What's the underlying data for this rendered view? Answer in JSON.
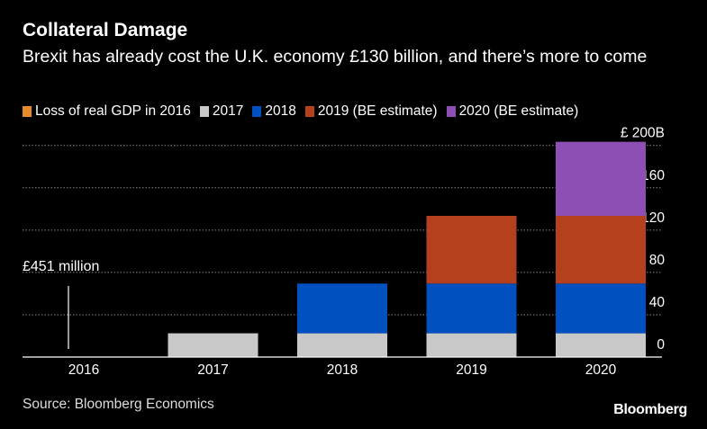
{
  "chart_data": {
    "type": "bar",
    "stacked": true,
    "title": "Collateral Damage",
    "subtitle": "Brexit has already cost the U.K. economy £130 billion, and there’s more to come",
    "categories": [
      "2016",
      "2017",
      "2018",
      "2019",
      "2020"
    ],
    "series": [
      {
        "name": "Loss of real GDP in 2016",
        "color": "#e8892c",
        "values": [
          0.451,
          0.451,
          0.451,
          0.451,
          0.451
        ]
      },
      {
        "name": "2017",
        "color": "#c8c8c8",
        "values": [
          0,
          22,
          22,
          22,
          22
        ]
      },
      {
        "name": "2018",
        "color": "#0050c0",
        "values": [
          0,
          0,
          47,
          47,
          47
        ]
      },
      {
        "name": "2019 (BE estimate)",
        "color": "#b5401e",
        "values": [
          0,
          0,
          0,
          64,
          64
        ]
      },
      {
        "name": "2020 (BE estimate)",
        "color": "#8e4fb5",
        "values": [
          0,
          0,
          0,
          0,
          70
        ]
      }
    ],
    "ylim": [
      0,
      200
    ],
    "yticks": [
      0,
      40,
      80,
      120,
      160,
      200
    ],
    "ytick_labels": [
      "0",
      "40",
      "80",
      "120",
      "160",
      "£ 200B"
    ],
    "yaxis_side": "right",
    "grid": "horizontal dotted",
    "legend_position": "top",
    "annotation": {
      "category": "2016",
      "text": "£451 million"
    },
    "source": "Source: Bloomberg Economics"
  },
  "branding": {
    "logo": "Bloomberg"
  }
}
